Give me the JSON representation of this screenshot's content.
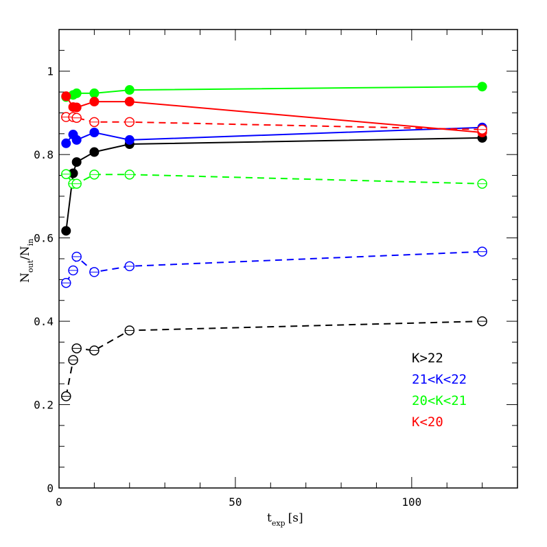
{
  "chart_data": {
    "type": "line",
    "xlabel": {
      "main": "t",
      "sub": "exp",
      "unit": "[s]"
    },
    "ylabel": {
      "n1": "N",
      "sub1": "out",
      "slash": "/",
      "n2": "N",
      "sub2": "in"
    },
    "xlim": [
      0,
      130
    ],
    "ylim": [
      0,
      1.1
    ],
    "x_ticks": [
      0,
      50,
      100
    ],
    "x_tick_labels": [
      "0",
      "50",
      "100"
    ],
    "y_ticks": [
      0,
      0.2,
      0.4,
      0.6,
      0.8,
      1.0
    ],
    "y_tick_labels": [
      "0",
      "0.2",
      "0.4",
      "0.6",
      "0.8",
      "1"
    ],
    "legend": [
      {
        "label": "K>22",
        "color": "#000000"
      },
      {
        "label": "21<K<22",
        "color": "#0000ff"
      },
      {
        "label": "20<K<21",
        "color": "#00ff00"
      },
      {
        "label": "K<20",
        "color": "#ff0000"
      }
    ],
    "series": [
      {
        "name": "K>22",
        "style": "solid",
        "marker": "filled",
        "color": "#000000",
        "x": [
          2,
          4,
          5,
          10,
          20,
          120
        ],
        "y": [
          0.617,
          0.755,
          0.782,
          0.806,
          0.825,
          0.84
        ]
      },
      {
        "name": "21<K<22",
        "style": "solid",
        "marker": "filled",
        "color": "#0000ff",
        "x": [
          2,
          4,
          5,
          10,
          20,
          120
        ],
        "y": [
          0.827,
          0.848,
          0.835,
          0.853,
          0.835,
          0.865
        ]
      },
      {
        "name": "20<K<21",
        "style": "solid",
        "marker": "filled",
        "color": "#00ff00",
        "x": [
          2,
          4,
          5,
          10,
          20,
          120
        ],
        "y": [
          0.938,
          0.943,
          0.947,
          0.947,
          0.955,
          0.963
        ]
      },
      {
        "name": "K<20",
        "style": "solid",
        "marker": "filled",
        "color": "#ff0000",
        "x": [
          2,
          4,
          5,
          10,
          20,
          120
        ],
        "y": [
          0.94,
          0.914,
          0.913,
          0.927,
          0.927,
          0.853
        ]
      },
      {
        "name": "K>22",
        "style": "dashed",
        "marker": "open",
        "color": "#000000",
        "x": [
          2,
          4,
          5,
          10,
          20,
          120
        ],
        "y": [
          0.22,
          0.307,
          0.335,
          0.33,
          0.378,
          0.4
        ]
      },
      {
        "name": "21<K<22",
        "style": "dashed",
        "marker": "open",
        "color": "#0000ff",
        "x": [
          2,
          4,
          5,
          10,
          20,
          120
        ],
        "y": [
          0.492,
          0.522,
          0.555,
          0.518,
          0.532,
          0.567
        ]
      },
      {
        "name": "20<K<21",
        "style": "dashed",
        "marker": "open",
        "color": "#00ff00",
        "x": [
          2,
          4,
          5,
          10,
          20,
          120
        ],
        "y": [
          0.753,
          0.73,
          0.73,
          0.752,
          0.752,
          0.73
        ]
      },
      {
        "name": "K<20",
        "style": "dashed",
        "marker": "open",
        "color": "#ff0000",
        "x": [
          2,
          4,
          5,
          10,
          20,
          120
        ],
        "y": [
          0.89,
          0.89,
          0.888,
          0.878,
          0.878,
          0.86
        ]
      }
    ]
  }
}
